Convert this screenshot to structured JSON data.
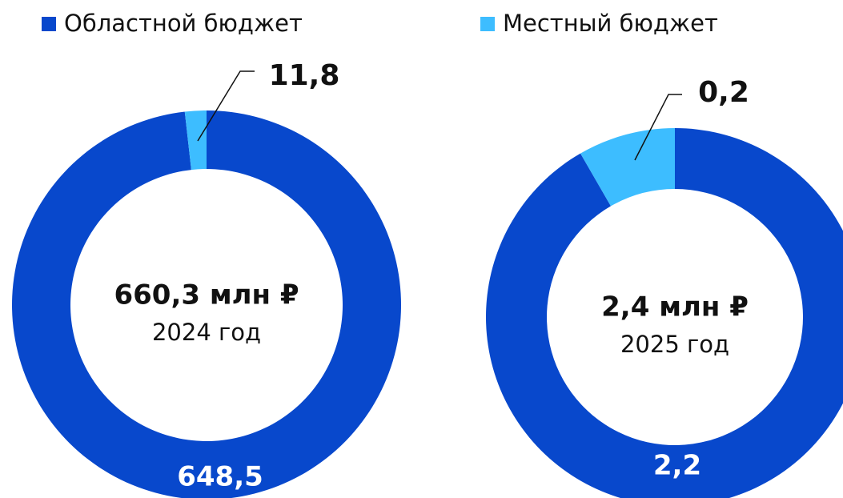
{
  "chart_data": {
    "type": "donut",
    "legend": [
      {
        "name": "Областной бюджет",
        "color": "#0848cc"
      },
      {
        "name": "Местный бюджет",
        "color": "#3dbdff"
      }
    ],
    "charts": [
      {
        "values": [
          648.5,
          11.8
        ],
        "value_labels": [
          "648,5",
          "11,8"
        ],
        "center_title": "660,3 млн ₽",
        "center_subtitle": "2024 год"
      },
      {
        "values": [
          2.2,
          0.2
        ],
        "value_labels": [
          "2,2",
          "0,2"
        ],
        "center_title": "2,4 млн ₽",
        "center_subtitle": "2025 год"
      }
    ]
  }
}
